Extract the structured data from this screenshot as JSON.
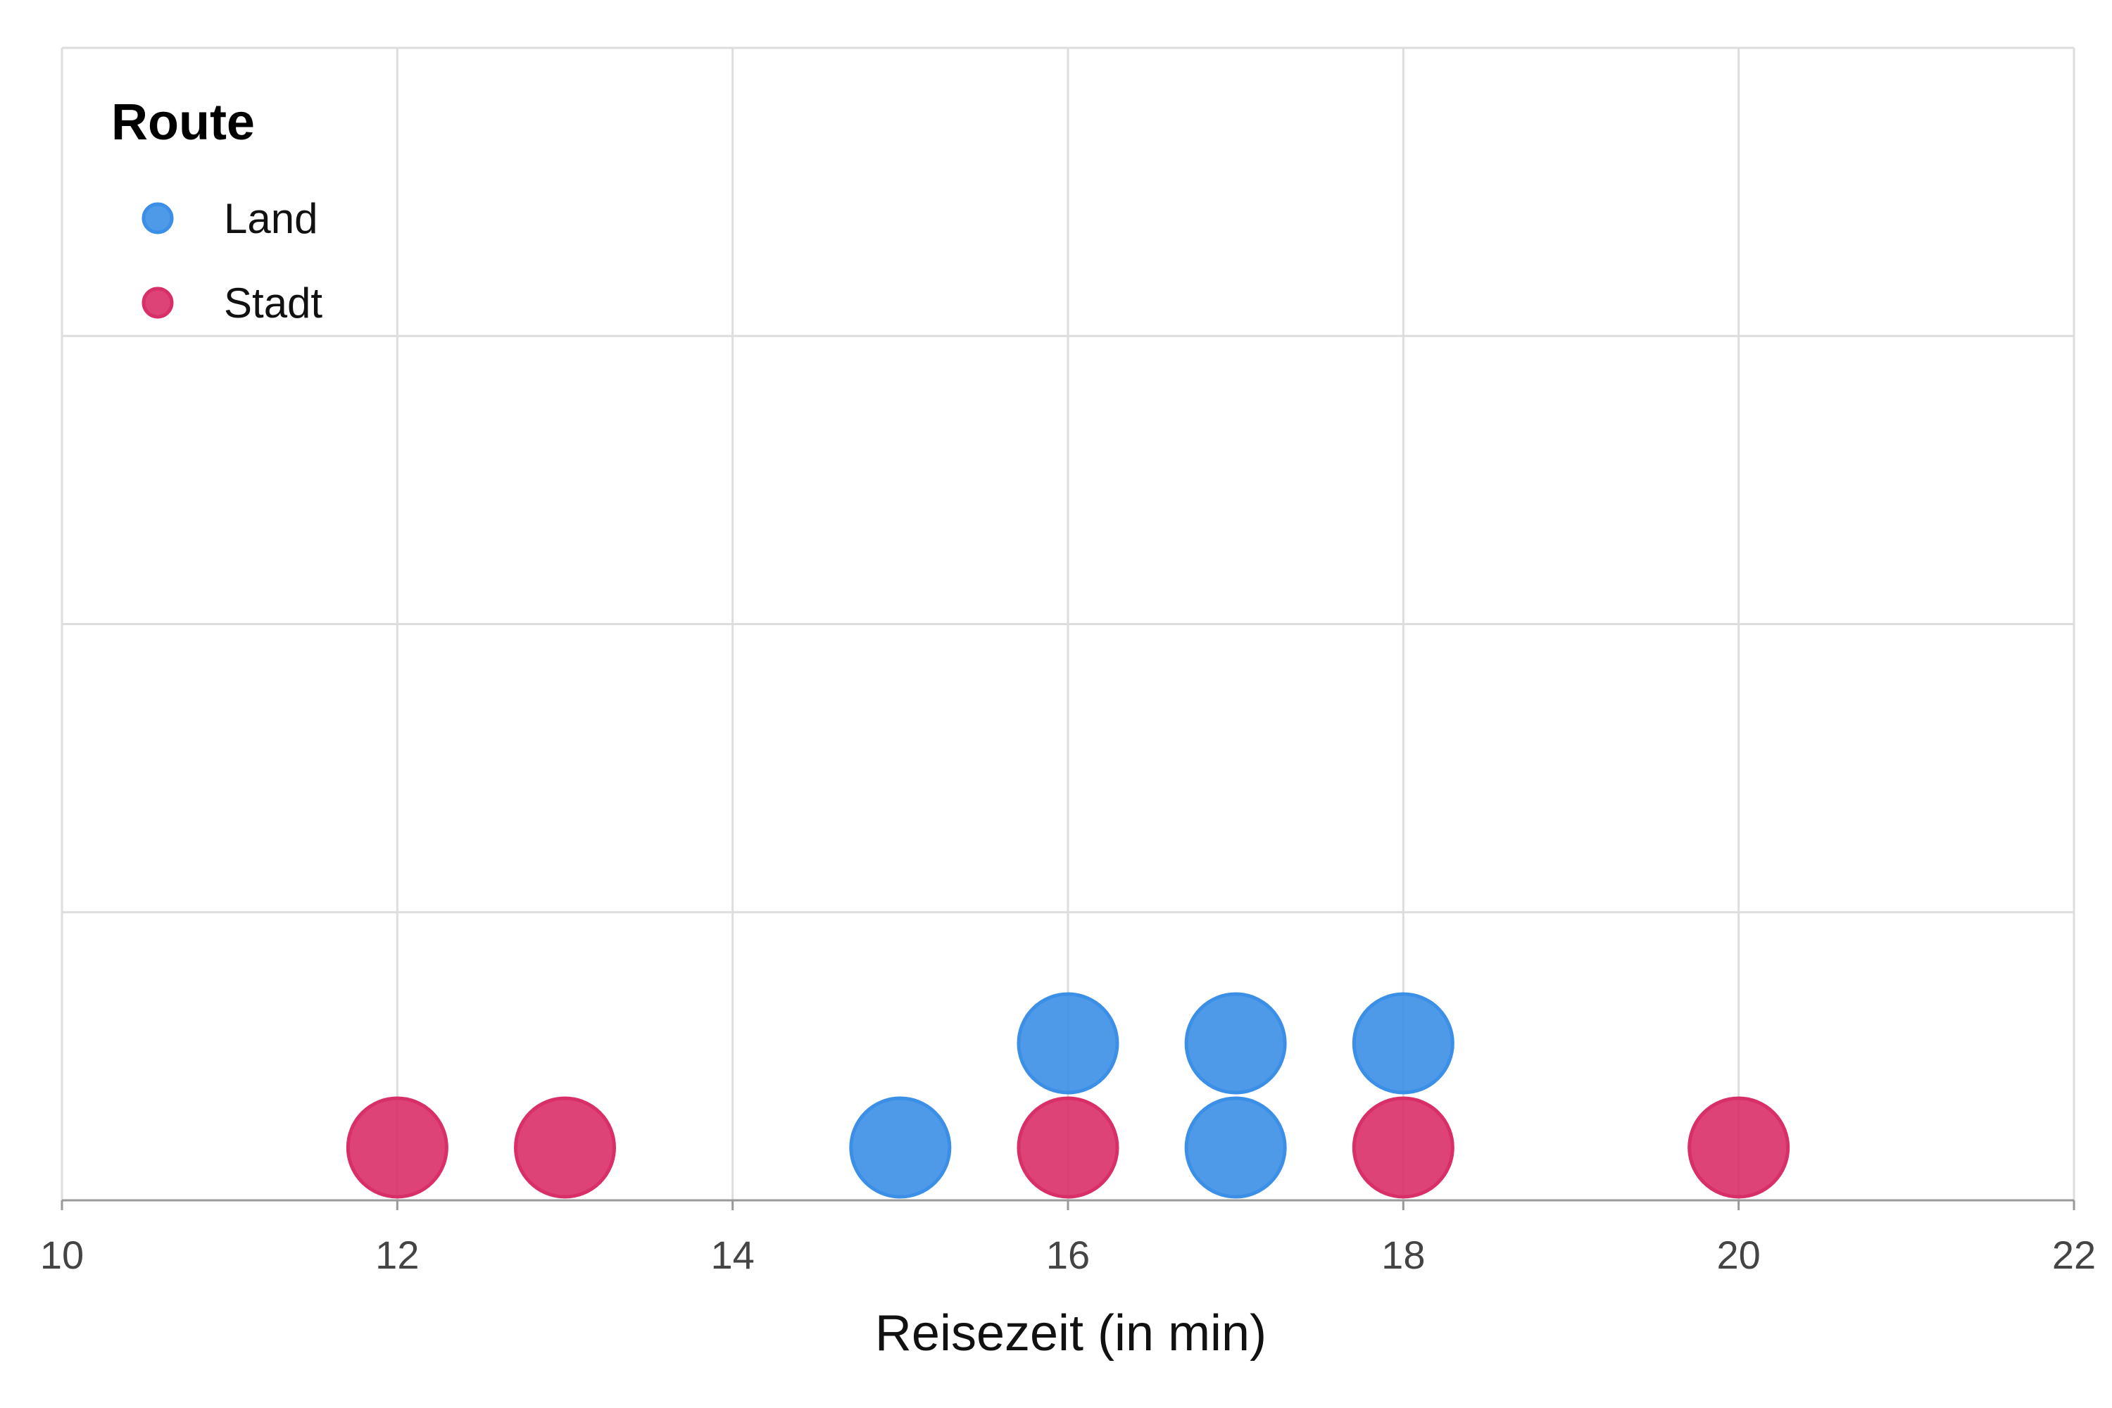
{
  "chart_data": {
    "type": "scatter",
    "subtype": "dot-plot",
    "title": "",
    "xlabel": "Reisezeit (in min)",
    "ylabel": "",
    "xlim": [
      10,
      22
    ],
    "xticks": [
      10,
      12,
      14,
      16,
      18,
      20,
      22
    ],
    "ylim": [
      0,
      4
    ],
    "y_gridlines": 4,
    "grid": true,
    "legend": {
      "title": "Route",
      "placement": "top-left"
    },
    "series": [
      {
        "name": "Land",
        "color": "#3b8fe6",
        "points": [
          {
            "x": 15,
            "stack": 1
          },
          {
            "x": 16,
            "stack": 2
          },
          {
            "x": 17,
            "stack": 1
          },
          {
            "x": 17,
            "stack": 2
          },
          {
            "x": 18,
            "stack": 2
          }
        ]
      },
      {
        "name": "Stadt",
        "color": "#d92f68",
        "points": [
          {
            "x": 12,
            "stack": 1
          },
          {
            "x": 13,
            "stack": 1
          },
          {
            "x": 16,
            "stack": 1
          },
          {
            "x": 18,
            "stack": 1
          },
          {
            "x": 20,
            "stack": 1
          }
        ]
      }
    ]
  }
}
